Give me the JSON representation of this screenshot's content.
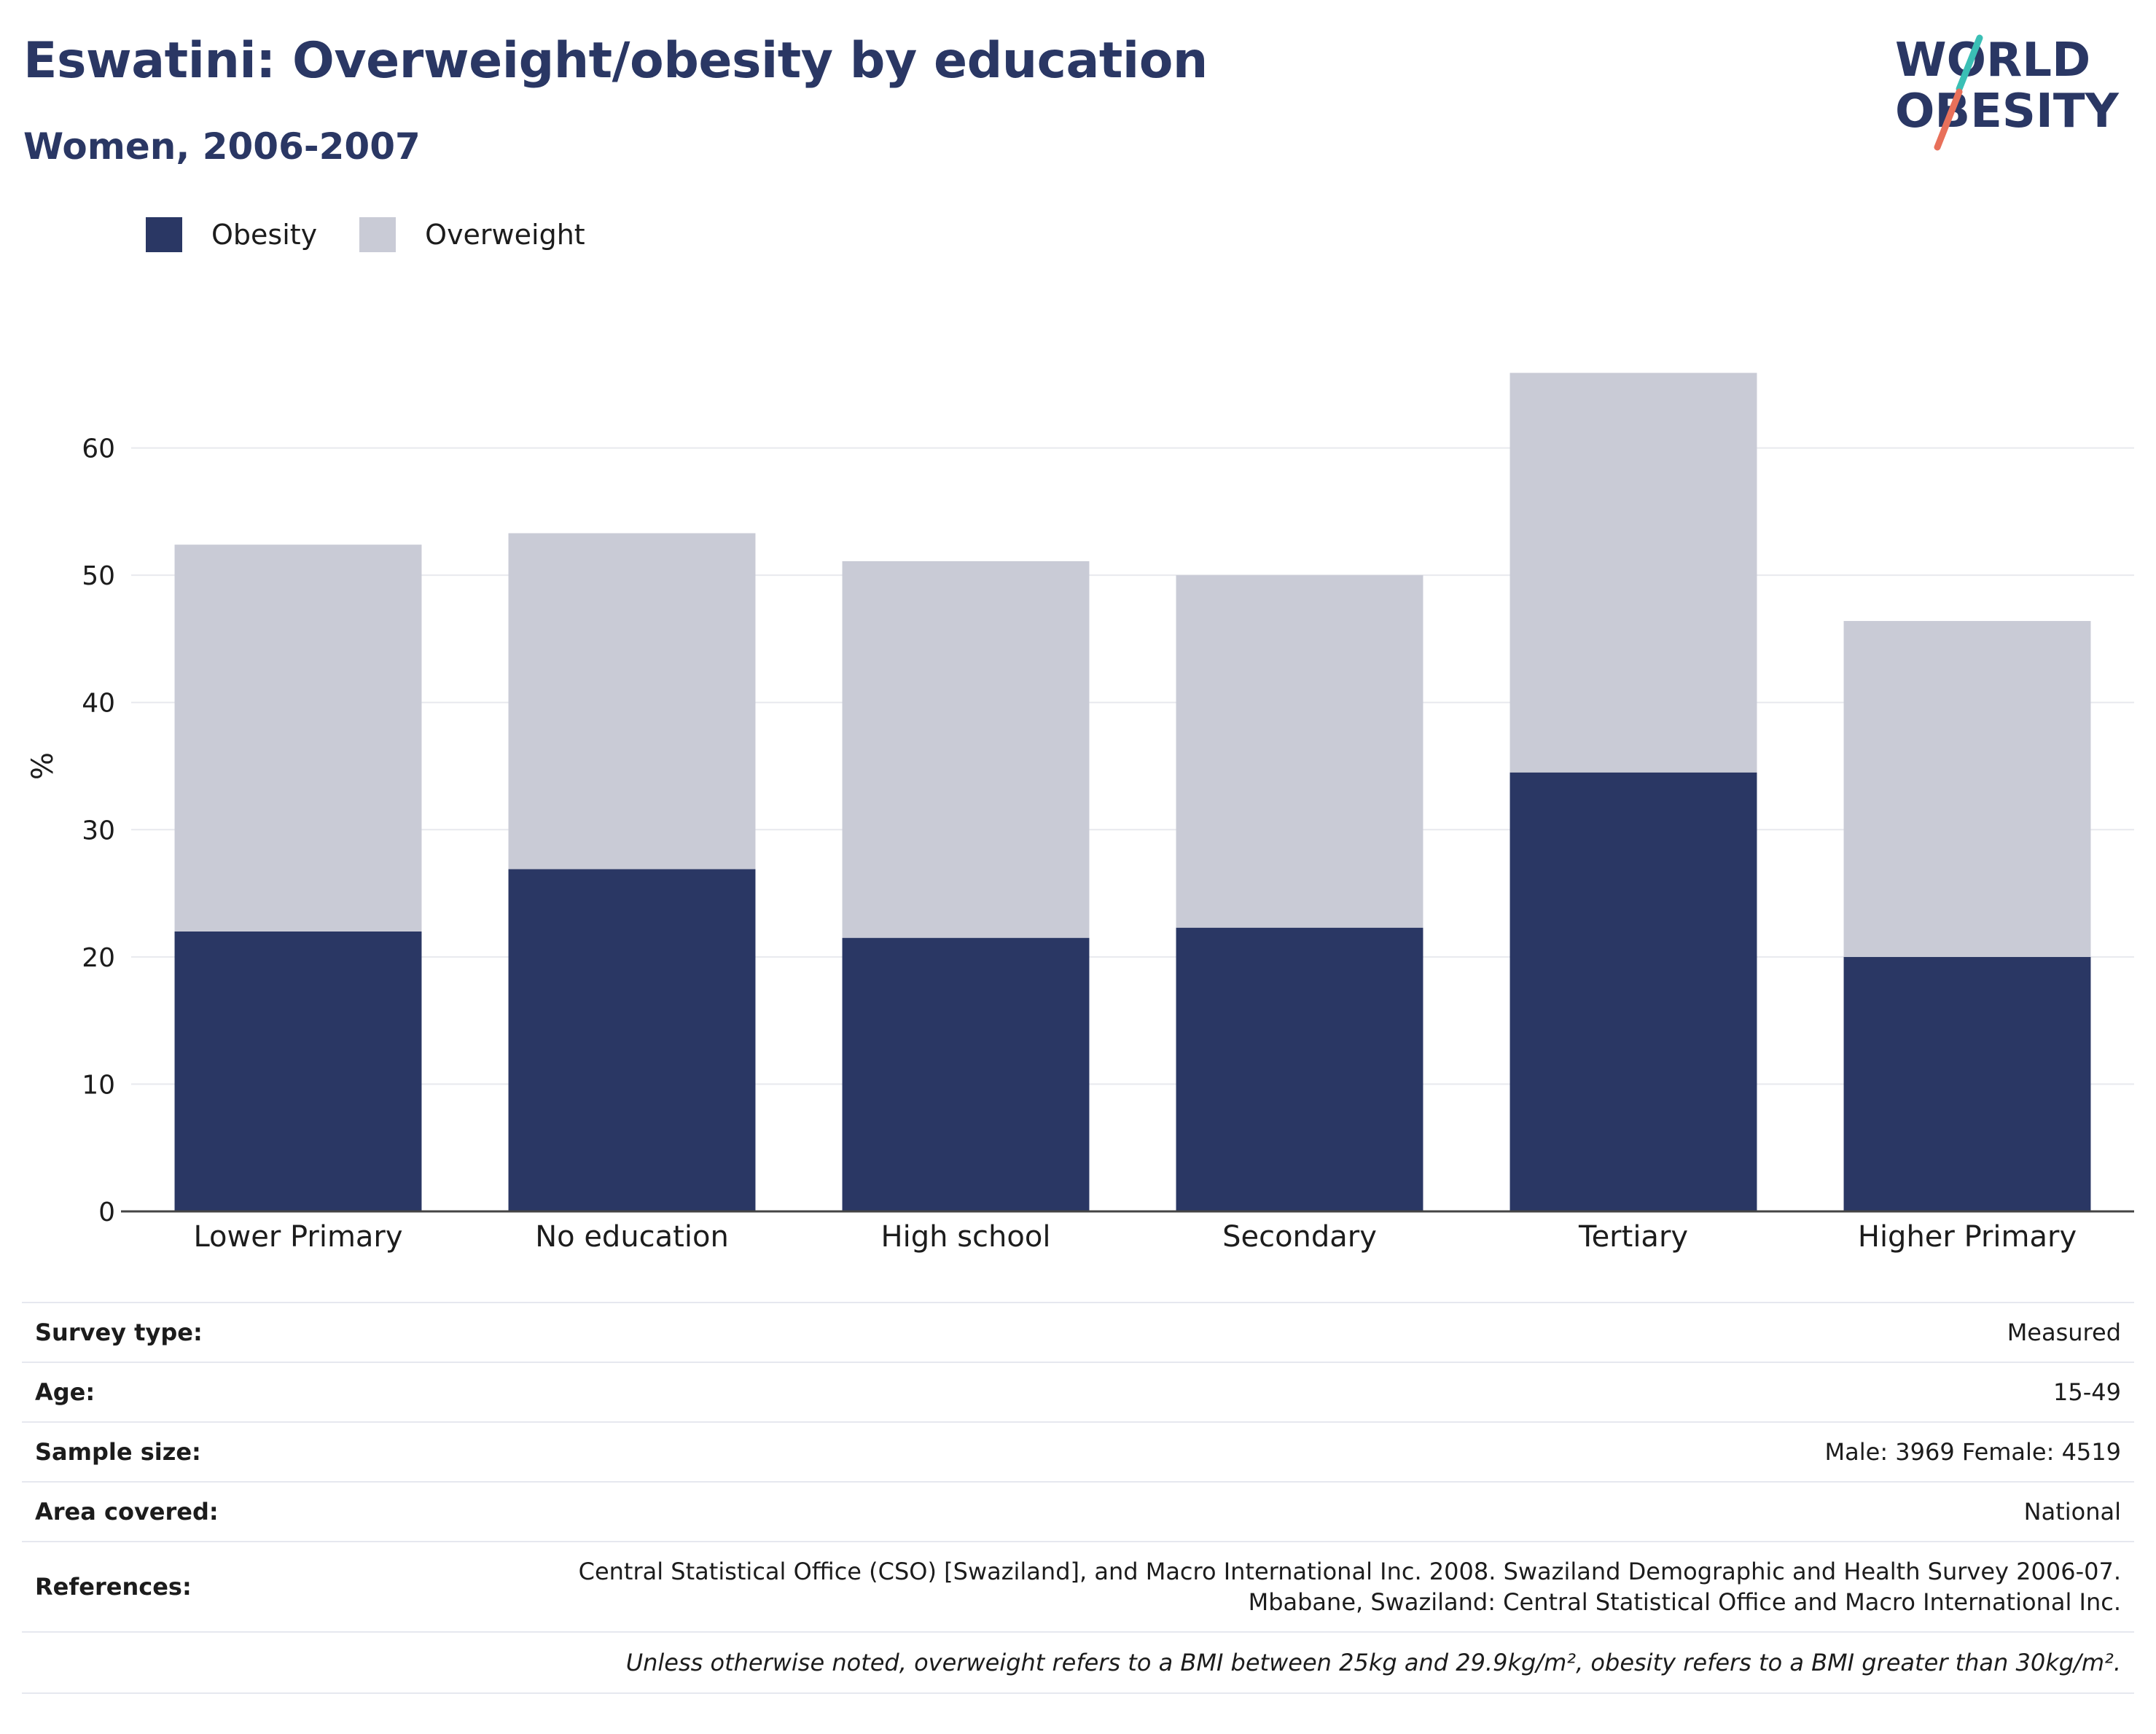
{
  "header": {
    "title": "Eswatini: Overweight/obesity by education",
    "subtitle": "Women, 2006-2007"
  },
  "logo": {
    "line1": "WORLD",
    "line2": "OBESITY",
    "colors": {
      "text": "#2a3764",
      "slash_top": "#3bbfb5",
      "slash_bottom": "#e8705a"
    }
  },
  "legend": {
    "items": [
      {
        "label": "Obesity",
        "color": "#2a3764"
      },
      {
        "label": "Overweight",
        "color": "#c9cbd6"
      }
    ]
  },
  "chart_data": {
    "type": "bar",
    "stacked": true,
    "categories": [
      "Lower Primary",
      "No education",
      "High school",
      "Secondary",
      "Tertiary",
      "Higher Primary"
    ],
    "series": [
      {
        "name": "Obesity",
        "color": "#2a3764",
        "values": [
          22.0,
          26.9,
          21.5,
          22.3,
          34.5,
          20.0
        ]
      },
      {
        "name": "Overweight",
        "color": "#c9cbd6",
        "values": [
          30.4,
          26.4,
          29.6,
          27.7,
          31.4,
          26.4
        ]
      }
    ],
    "ylabel": "%",
    "xlabel": "",
    "ylim": [
      0,
      70
    ],
    "yticks": [
      0,
      10,
      20,
      30,
      40,
      50,
      60
    ],
    "grid": true,
    "legend_position": "top-left"
  },
  "info": {
    "rows": [
      {
        "key": "Survey type:",
        "value": "Measured"
      },
      {
        "key": "Age:",
        "value": "15-49"
      },
      {
        "key": "Sample size:",
        "value": "Male: 3969 Female: 4519"
      },
      {
        "key": "Area covered:",
        "value": "National"
      }
    ],
    "references_key": "References:",
    "references_line1": "Central Statistical Office (CSO) [Swaziland], and Macro International Inc. 2008. Swaziland Demographic and Health Survey 2006-07.",
    "references_line2": "Mbabane, Swaziland: Central Statistical Office and Macro International Inc.",
    "note": "Unless otherwise noted, overweight refers to a BMI between 25kg and 29.9kg/m², obesity refers to a BMI greater than 30kg/m²."
  }
}
